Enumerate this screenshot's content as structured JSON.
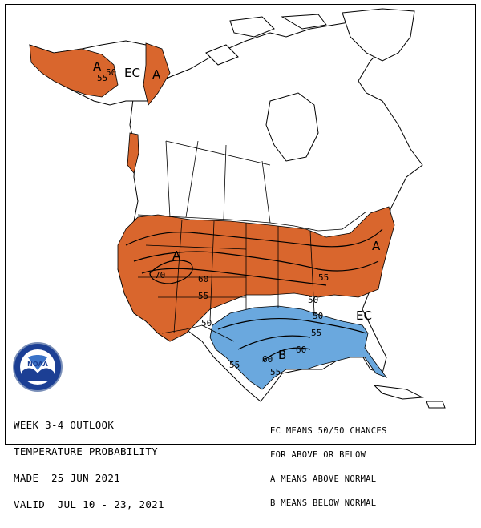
{
  "info": {
    "line1": "WEEK 3-4 OUTLOOK",
    "line2": "TEMPERATURE PROBABILITY",
    "line3": "MADE  25 JUN 2021",
    "line4": "VALID  JUL 10 - 23, 2021"
  },
  "legend": {
    "line1": "EC MEANS 50/50 CHANCES",
    "line2": "FOR ABOVE OR BELOW",
    "line3": "A MEANS ABOVE NORMAL",
    "line4": "B MEANS BELOW NORMAL"
  },
  "logo_text": "NOAA",
  "colors": {
    "above": "#d9662d",
    "below": "#6aa8de",
    "land": "#ffffff",
    "border": "#000000"
  },
  "map_labels": {
    "alaska_A": "A",
    "alaska_55": "55",
    "alaska_50": "50",
    "alaska_EC": "EC",
    "yukon_A": "A",
    "west_A": "A",
    "c70": "70",
    "c60": "60",
    "c55a": "55",
    "c50a": "50",
    "ne_A": "A",
    "ne_55": "55",
    "se_50": "50",
    "se_50b": "50",
    "se_EC": "EC",
    "south_B": "B",
    "s55a": "55",
    "s55b": "55",
    "s60a": "60",
    "s60b": "60",
    "w50": "50",
    "w55": "55"
  }
}
